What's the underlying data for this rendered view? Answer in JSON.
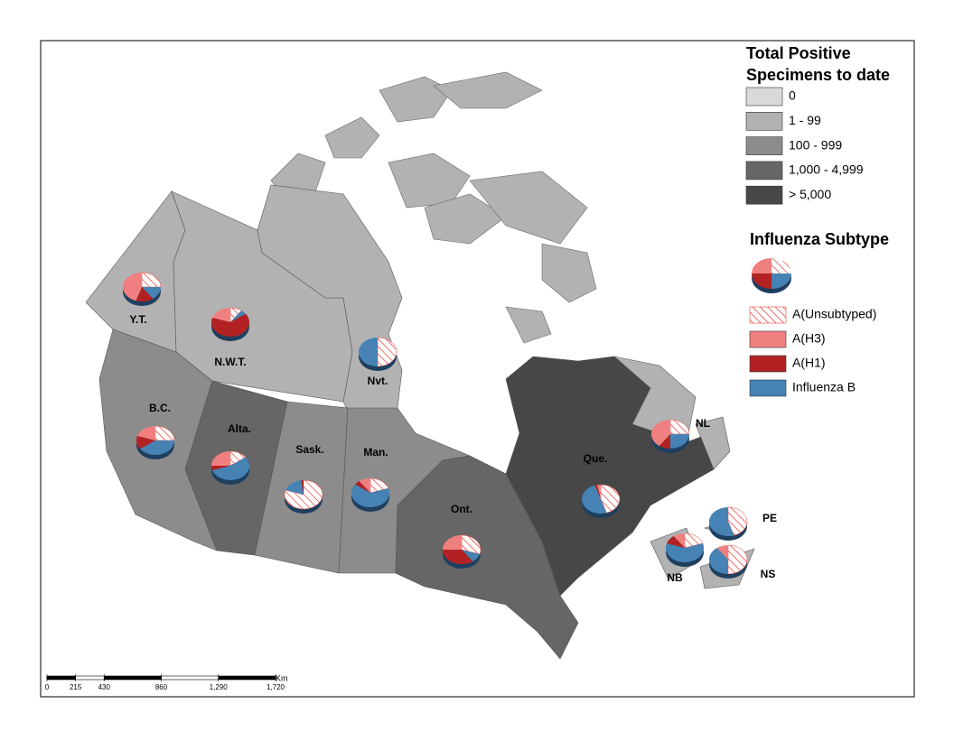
{
  "legend": {
    "title": "Total Positive Specimens to date",
    "classes": [
      {
        "label": "0",
        "color": "#d9d9d9"
      },
      {
        "label": "1 - 99",
        "color": "#b2b2b2"
      },
      {
        "label": "100 - 999",
        "color": "#8c8c8c"
      },
      {
        "label": "1,000 - 4,999",
        "color": "#666666"
      },
      {
        "label": "> 5,000",
        "color": "#474747"
      }
    ]
  },
  "subtype_legend": {
    "title": "Influenza Subtype",
    "items": [
      {
        "label": "A(Unsubtyped)",
        "color": "#e8453c",
        "hatch": true
      },
      {
        "label": "A(H3)",
        "color": "#f08080",
        "hatch": false
      },
      {
        "label": "A(H1)",
        "color": "#b22222",
        "hatch": false
      },
      {
        "label": "Influenza B",
        "color": "#4682b4",
        "hatch": false
      }
    ]
  },
  "regions": [
    {
      "label": "Y.T.",
      "class": 1,
      "shares": [
        25,
        45,
        15,
        15
      ]
    },
    {
      "label": "N.W.T.",
      "class": 1,
      "shares": [
        10,
        20,
        65,
        5
      ]
    },
    {
      "label": "Nvt.",
      "class": 1,
      "shares": [
        50,
        0,
        0,
        50
      ]
    },
    {
      "label": "B.C.",
      "class": 2,
      "shares": [
        25,
        20,
        15,
        40
      ]
    },
    {
      "label": "Alta.",
      "class": 3,
      "shares": [
        15,
        25,
        5,
        55
      ]
    },
    {
      "label": "Sask.",
      "class": 2,
      "shares": [
        80,
        0,
        2,
        18
      ]
    },
    {
      "label": "Man.",
      "class": 2,
      "shares": [
        20,
        10,
        5,
        65
      ]
    },
    {
      "label": "Ont.",
      "class": 3,
      "shares": [
        30,
        25,
        35,
        10
      ]
    },
    {
      "label": "Que.",
      "class": 4,
      "shares": [
        45,
        3,
        2,
        50
      ]
    },
    {
      "label": "NL",
      "class": 1,
      "shares": [
        25,
        40,
        10,
        25
      ]
    },
    {
      "label": "PE",
      "class": 1,
      "shares": [
        45,
        0,
        0,
        55
      ]
    },
    {
      "label": "NB",
      "class": 1,
      "shares": [
        20,
        10,
        10,
        60
      ]
    },
    {
      "label": "NS",
      "class": 1,
      "shares": [
        50,
        10,
        0,
        40
      ]
    }
  ],
  "scale_bar": {
    "unit": "Km",
    "max": 1720,
    "ticks": [
      0,
      215,
      430,
      860,
      {
        "value": 1290,
        "label": "1,290"
      },
      {
        "value": 1720,
        "label": "1,720"
      }
    ]
  }
}
